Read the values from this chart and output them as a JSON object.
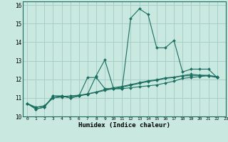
{
  "xlabel": "Humidex (Indice chaleur)",
  "background_color": "#c8e8e0",
  "grid_color": "#a8cec8",
  "line_color": "#1a6e60",
  "xlim": [
    -0.5,
    23
  ],
  "ylim": [
    10,
    16.2
  ],
  "x": [
    0,
    1,
    2,
    3,
    4,
    5,
    6,
    7,
    8,
    9,
    10,
    11,
    12,
    13,
    14,
    15,
    16,
    17,
    18,
    19,
    20,
    21,
    22,
    23
  ],
  "line1": [
    10.7,
    10.4,
    10.5,
    11.1,
    11.1,
    11.0,
    11.1,
    11.2,
    12.2,
    13.05,
    11.5,
    11.5,
    15.3,
    15.8,
    15.5,
    13.7,
    13.7,
    14.1,
    12.4,
    12.55,
    12.55,
    12.55,
    12.1,
    null
  ],
  "line2": [
    10.7,
    10.4,
    10.5,
    11.1,
    11.1,
    11.0,
    11.1,
    12.1,
    12.1,
    11.5,
    11.5,
    11.5,
    11.55,
    11.6,
    11.65,
    11.7,
    11.8,
    11.9,
    12.05,
    12.1,
    12.15,
    12.2,
    12.15,
    null
  ],
  "line3": [
    10.7,
    10.5,
    10.55,
    11.0,
    11.05,
    11.1,
    11.15,
    11.2,
    11.3,
    11.4,
    11.5,
    11.58,
    11.68,
    11.78,
    11.88,
    11.95,
    12.05,
    12.1,
    12.18,
    12.2,
    12.22,
    12.18,
    12.1,
    null
  ],
  "line4": [
    10.7,
    10.48,
    10.58,
    11.0,
    11.08,
    11.1,
    11.12,
    11.22,
    11.32,
    11.45,
    11.55,
    11.62,
    11.72,
    11.82,
    11.92,
    11.98,
    12.08,
    12.12,
    12.2,
    12.28,
    12.22,
    12.22,
    12.12,
    null
  ]
}
